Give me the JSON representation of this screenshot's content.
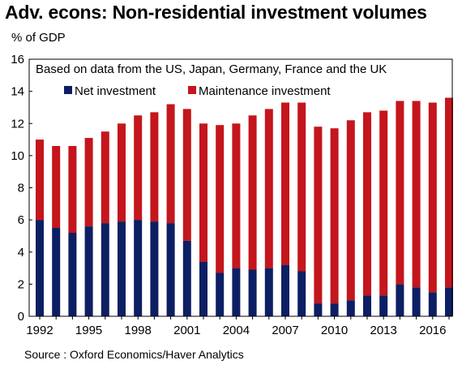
{
  "title": "Adv. econs: Non-residential investment volumes",
  "unit_label": "% of GDP",
  "source": "Source : Oxford Economics/Haver Analytics",
  "colors": {
    "net": "#0d1f63",
    "maintenance": "#c4161c"
  },
  "chart_data": {
    "type": "bar",
    "stacked": true,
    "title": "Adv. econs: Non-residential investment volumes",
    "subtitle": "Based on data from the US, Japan, Germany, France and the UK",
    "ylabel": "% of GDP",
    "ylim": [
      0,
      16
    ],
    "yticks": [
      0,
      2,
      4,
      6,
      8,
      10,
      12,
      14,
      16
    ],
    "xtick_labels": [
      "1992",
      "1995",
      "1998",
      "2001",
      "2004",
      "2007",
      "2010",
      "2013",
      "2016"
    ],
    "categories": [
      "1992",
      "1993",
      "1994",
      "1995",
      "1996",
      "1997",
      "1998",
      "1999",
      "2000",
      "2001",
      "2002",
      "2003",
      "2004",
      "2005",
      "2006",
      "2007",
      "2008",
      "2009",
      "2010",
      "2011",
      "2012",
      "2013",
      "2014",
      "2015",
      "2016",
      "2017"
    ],
    "series": [
      {
        "name": "Net investment",
        "values": [
          6.0,
          5.5,
          5.2,
          5.6,
          5.8,
          5.9,
          6.0,
          5.9,
          5.8,
          4.7,
          3.4,
          2.7,
          3.0,
          2.9,
          3.0,
          3.2,
          2.8,
          0.8,
          0.8,
          1.0,
          1.3,
          1.3,
          2.0,
          1.8,
          1.5,
          1.8
        ]
      },
      {
        "name": "Maintenance investment",
        "values": [
          5.0,
          5.1,
          5.4,
          5.5,
          5.7,
          6.1,
          6.5,
          6.8,
          7.4,
          8.2,
          8.6,
          9.2,
          9.0,
          9.6,
          9.9,
          10.1,
          10.5,
          11.0,
          10.9,
          11.2,
          11.4,
          11.5,
          11.4,
          11.6,
          11.8,
          11.8
        ]
      }
    ],
    "legend": "top-left",
    "grid": false
  }
}
